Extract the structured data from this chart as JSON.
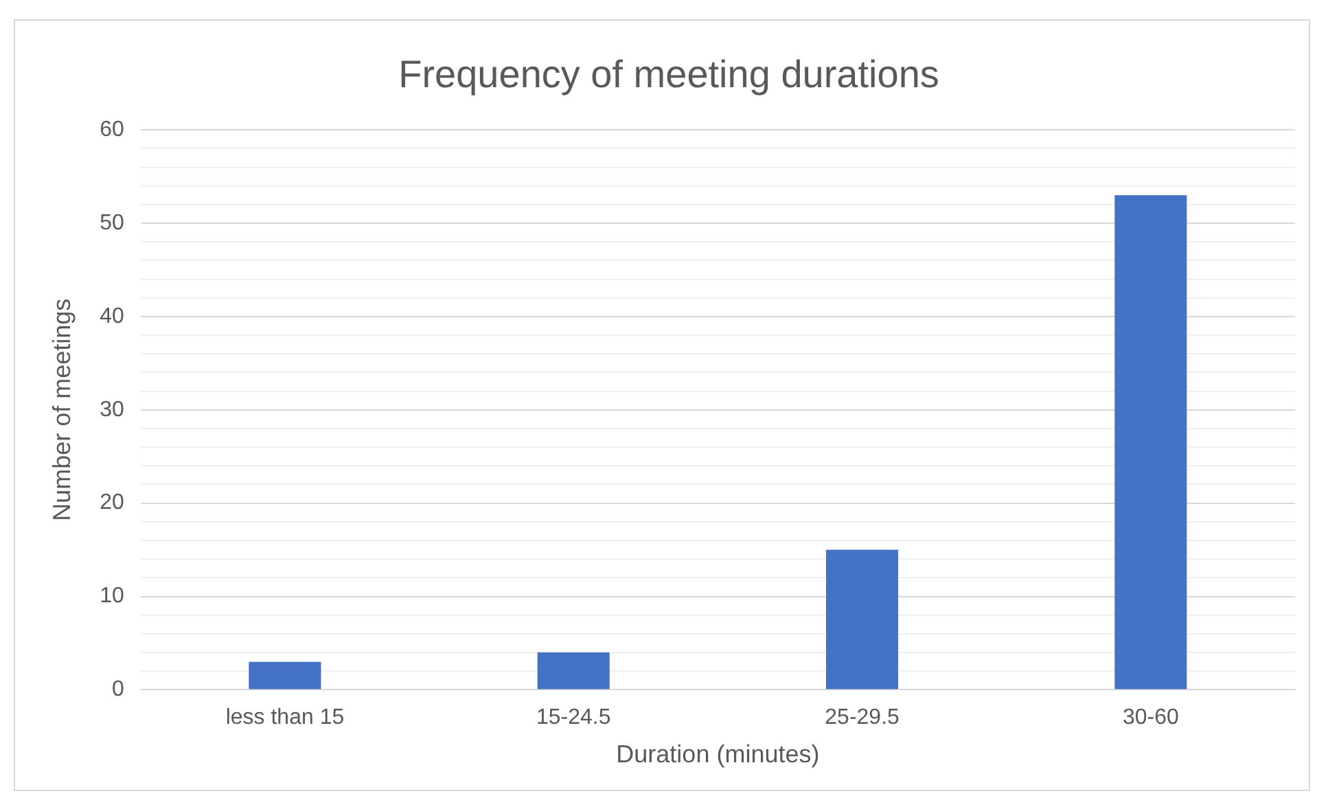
{
  "chart_data": {
    "type": "bar",
    "title": "Frequency of meeting durations",
    "xlabel": "Duration (minutes)",
    "ylabel": "Number of meetings",
    "categories": [
      "less than 15",
      "15-24.5",
      "25-29.5",
      "30-60"
    ],
    "values": [
      3,
      4,
      15,
      53
    ],
    "color": "#4472c4",
    "ylim": [
      0,
      60
    ],
    "yticks": [
      0,
      {
        "value": 2,
        "label": null
      },
      {
        "value": 4,
        "label": null
      },
      {
        "value": 6,
        "label": null
      },
      {
        "value": 8,
        "label": null
      },
      10,
      {
        "value": 12,
        "label": null
      },
      {
        "value": 14,
        "label": null
      },
      {
        "value": 16,
        "label": null
      },
      {
        "value": 18,
        "label": null
      },
      20,
      {
        "value": 22,
        "label": null
      },
      {
        "value": 24,
        "label": null
      },
      {
        "value": 26,
        "label": null
      },
      {
        "value": 28,
        "label": null
      },
      30,
      {
        "value": 32,
        "label": null
      },
      {
        "value": 34,
        "label": null
      },
      {
        "value": 36,
        "label": null
      },
      {
        "value": 38,
        "label": null
      },
      40,
      {
        "value": 42,
        "label": null
      },
      {
        "value": 44,
        "label": null
      },
      {
        "value": 46,
        "label": null
      },
      {
        "value": 48,
        "label": null
      },
      50,
      {
        "value": 52,
        "label": null
      },
      {
        "value": 54,
        "label": null
      },
      {
        "value": 56,
        "label": null
      },
      {
        "value": 58,
        "label": null
      },
      60
    ],
    "grid": true,
    "legend": false
  }
}
